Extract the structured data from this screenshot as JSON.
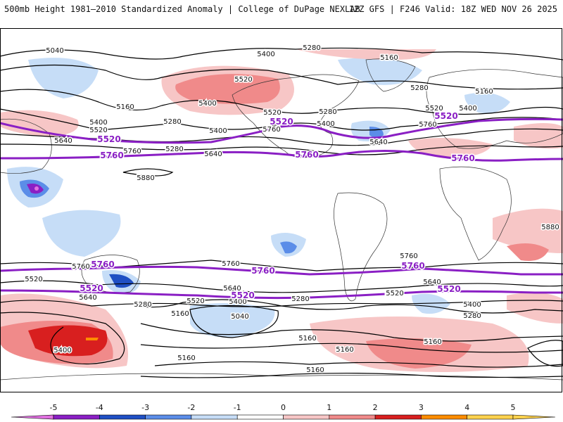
{
  "header": {
    "title_left": "500mb Height 1981–2010 Standardized Anomaly | College of DuPage NEXLAB",
    "title_right": "12Z GFS | F246 Valid: 18Z WED NOV 26 2025"
  },
  "colors": {
    "neg5": "#e070e0",
    "neg4": "#8a1fc4",
    "neg3": "#1f4fc4",
    "neg2": "#5b8de8",
    "neg1": "#c6ddf7",
    "pos1": "#f7c6c6",
    "pos2": "#f08a8a",
    "pos3": "#d81f1f",
    "pos4": "#ff8c00",
    "pos5": "#ffd24d",
    "purple": "#8a1fc4",
    "black": "#000000"
  },
  "map_labels": {
    "black": [
      {
        "id": "b1",
        "text": "5040"
      },
      {
        "id": "b2",
        "text": "5400"
      },
      {
        "id": "b3",
        "text": "5280"
      },
      {
        "id": "b4",
        "text": "5160"
      },
      {
        "id": "b5",
        "text": "5520"
      },
      {
        "id": "b6",
        "text": "5160"
      },
      {
        "id": "b7",
        "text": "5400"
      },
      {
        "id": "b8",
        "text": "5280"
      },
      {
        "id": "b9",
        "text": "5400"
      },
      {
        "id": "b10",
        "text": "5520"
      },
      {
        "id": "b11",
        "text": "5280"
      },
      {
        "id": "b12",
        "text": "5160"
      },
      {
        "id": "b13",
        "text": "5280"
      },
      {
        "id": "b14",
        "text": "5400"
      },
      {
        "id": "b15",
        "text": "5520"
      },
      {
        "id": "b16",
        "text": "5400"
      },
      {
        "id": "b17",
        "text": "5520"
      },
      {
        "id": "b18",
        "text": "5640"
      },
      {
        "id": "b19",
        "text": "5400"
      },
      {
        "id": "b20",
        "text": "5760"
      },
      {
        "id": "b21",
        "text": "5640"
      },
      {
        "id": "b22",
        "text": "5760"
      },
      {
        "id": "b23",
        "text": "5880"
      },
      {
        "id": "b24",
        "text": "5760"
      },
      {
        "id": "b25",
        "text": "5640"
      },
      {
        "id": "b26",
        "text": "5280"
      },
      {
        "id": "b27",
        "text": "5880"
      },
      {
        "id": "b28",
        "text": "5760"
      },
      {
        "id": "b29",
        "text": "5760"
      },
      {
        "id": "b30",
        "text": "5640"
      },
      {
        "id": "b31",
        "text": "5520"
      },
      {
        "id": "b32",
        "text": "5640"
      },
      {
        "id": "b33",
        "text": "5280"
      },
      {
        "id": "b34",
        "text": "5160"
      },
      {
        "id": "b35",
        "text": "5520"
      },
      {
        "id": "b36",
        "text": "5400"
      },
      {
        "id": "b37",
        "text": "5280"
      },
      {
        "id": "b38",
        "text": "5040"
      },
      {
        "id": "b39",
        "text": "5400"
      },
      {
        "id": "b40",
        "text": "5160"
      },
      {
        "id": "b41",
        "text": "5160"
      },
      {
        "id": "b42",
        "text": "5160"
      },
      {
        "id": "b43",
        "text": "5160"
      },
      {
        "id": "b44",
        "text": "5160"
      },
      {
        "id": "b45",
        "text": "5640"
      },
      {
        "id": "b46",
        "text": "5520"
      },
      {
        "id": "b47",
        "text": "5400"
      },
      {
        "id": "b48",
        "text": "5280"
      },
      {
        "id": "b49",
        "text": "5760"
      },
      {
        "id": "b50",
        "text": "5520"
      }
    ],
    "purple": [
      {
        "id": "p1",
        "text": "5520"
      },
      {
        "id": "p2",
        "text": "5520"
      },
      {
        "id": "p3",
        "text": "5520"
      },
      {
        "id": "p4",
        "text": "5760"
      },
      {
        "id": "p5",
        "text": "5760"
      },
      {
        "id": "p6",
        "text": "5760"
      },
      {
        "id": "p7",
        "text": "5760"
      },
      {
        "id": "p8",
        "text": "5760"
      },
      {
        "id": "p9",
        "text": "5760"
      },
      {
        "id": "p10",
        "text": "5520"
      },
      {
        "id": "p11",
        "text": "5520"
      },
      {
        "id": "p12",
        "text": "5520"
      }
    ]
  },
  "colorbar": {
    "ticks": [
      "-5",
      "-4",
      "-3",
      "-2",
      "-1",
      "0",
      "1",
      "2",
      "3",
      "4",
      "5"
    ]
  }
}
